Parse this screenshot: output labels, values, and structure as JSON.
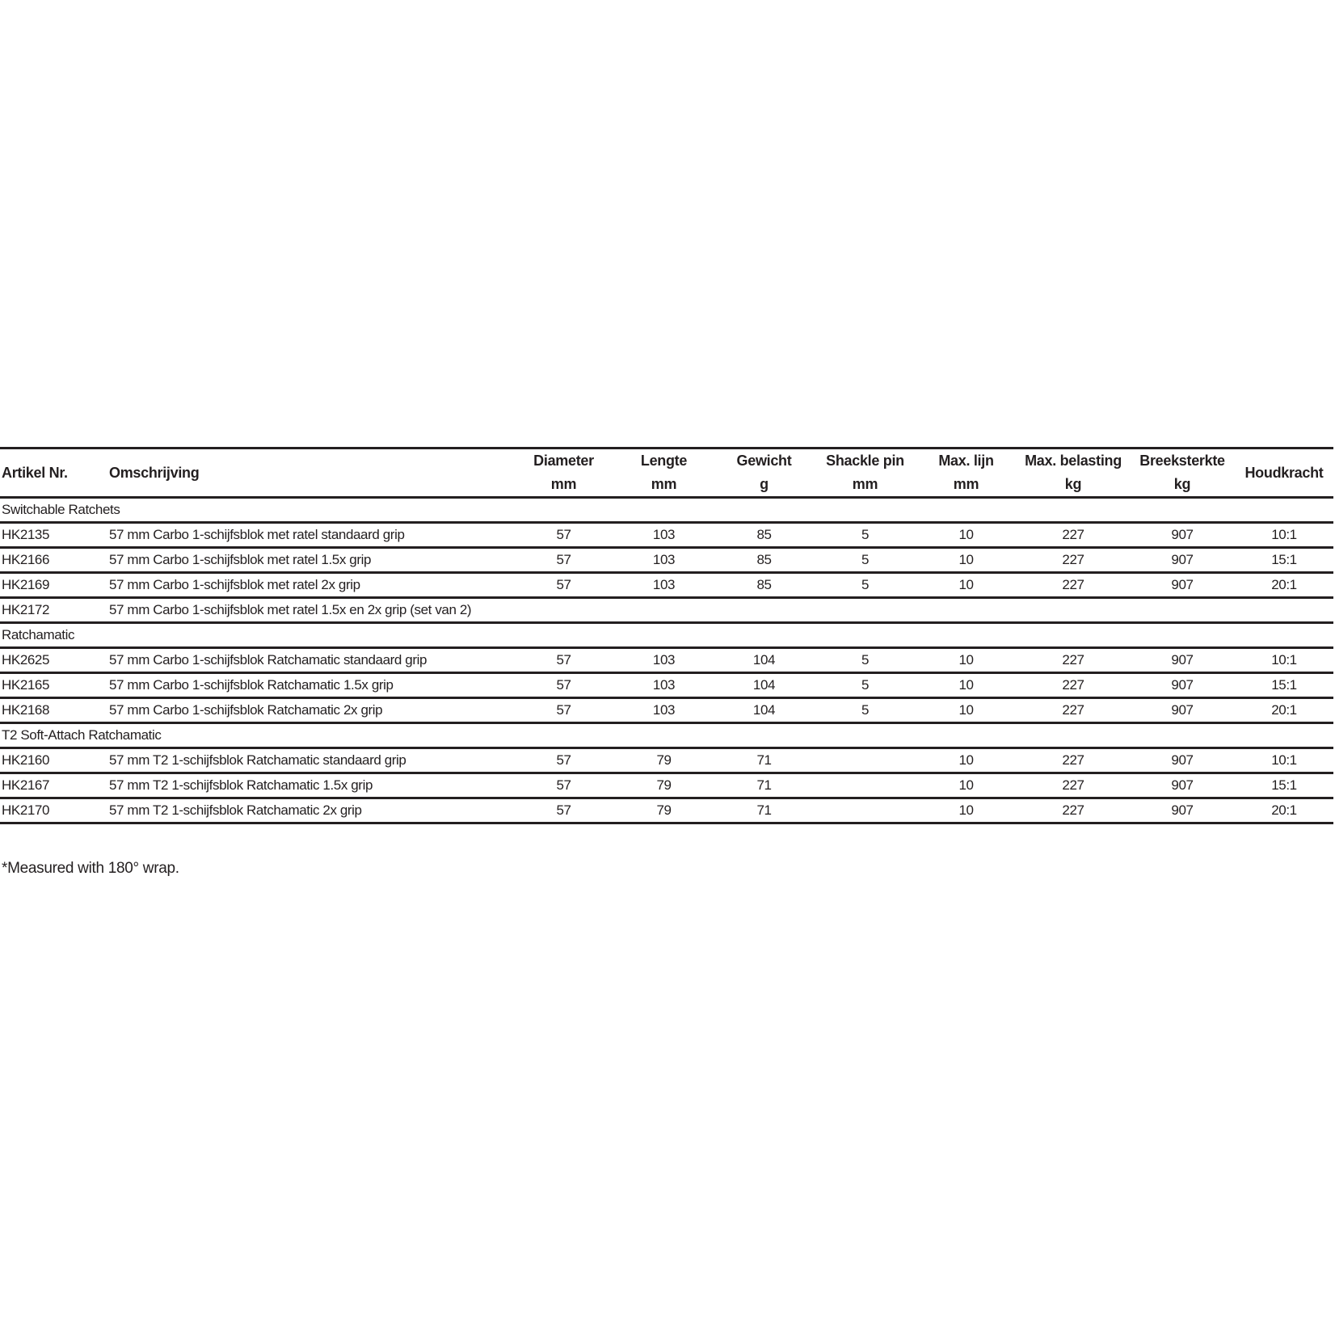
{
  "table": {
    "headers": [
      {
        "label": "Artikel Nr.",
        "unit": ""
      },
      {
        "label": "Omschrijving",
        "unit": ""
      },
      {
        "label": "Diameter",
        "unit": "mm"
      },
      {
        "label": "Lengte",
        "unit": "mm"
      },
      {
        "label": "Gewicht",
        "unit": "g"
      },
      {
        "label": "Shackle pin",
        "unit": "mm"
      },
      {
        "label": "Max. lijn",
        "unit": "mm"
      },
      {
        "label": "Max. belasting",
        "unit": "kg"
      },
      {
        "label": "Breeksterkte",
        "unit": "kg"
      },
      {
        "label": "Houdkracht",
        "unit": ""
      }
    ],
    "groups": [
      {
        "title": "Switchable Ratchets",
        "rows": [
          [
            "HK2135",
            "57 mm Carbo 1-schijfsblok met ratel standaard grip",
            "57",
            "103",
            "85",
            "5",
            "10",
            "227",
            "907",
            "10:1"
          ],
          [
            "HK2166",
            "57 mm Carbo 1-schijfsblok met ratel 1.5x grip",
            "57",
            "103",
            "85",
            "5",
            "10",
            "227",
            "907",
            "15:1"
          ],
          [
            "HK2169",
            "57 mm Carbo 1-schijfsblok met ratel 2x grip",
            "57",
            "103",
            "85",
            "5",
            "10",
            "227",
            "907",
            "20:1"
          ],
          [
            "HK2172",
            "57 mm Carbo 1-schijfsblok met ratel 1.5x en 2x grip (set van 2)",
            "",
            "",
            "",
            "",
            "",
            "",
            "",
            ""
          ]
        ]
      },
      {
        "title": "Ratchamatic",
        "rows": [
          [
            "HK2625",
            "57 mm Carbo 1-schijfsblok Ratchamatic standaard grip",
            "57",
            "103",
            "104",
            "5",
            "10",
            "227",
            "907",
            "10:1"
          ],
          [
            "HK2165",
            "57 mm Carbo 1-schijfsblok Ratchamatic 1.5x grip",
            "57",
            "103",
            "104",
            "5",
            "10",
            "227",
            "907",
            "15:1"
          ],
          [
            "HK2168",
            "57 mm Carbo 1-schijfsblok Ratchamatic 2x grip",
            "57",
            "103",
            "104",
            "5",
            "10",
            "227",
            "907",
            "20:1"
          ]
        ]
      },
      {
        "title": "T2 Soft-Attach Ratchamatic",
        "rows": [
          [
            "HK2160",
            "57 mm T2 1-schijfsblok Ratchamatic standaard grip",
            "57",
            "79",
            "71",
            "",
            "10",
            "227",
            "907",
            "10:1"
          ],
          [
            "HK2167",
            "57 mm T2 1-schijfsblok Ratchamatic 1.5x grip",
            "57",
            "79",
            "71",
            "",
            "10",
            "227",
            "907",
            "15:1"
          ],
          [
            "HK2170",
            "57 mm T2 1-schijfsblok Ratchamatic 2x grip",
            "57",
            "79",
            "71",
            "",
            "10",
            "227",
            "907",
            "20:1"
          ]
        ]
      }
    ]
  },
  "footnote": "*Measured with 180° wrap."
}
